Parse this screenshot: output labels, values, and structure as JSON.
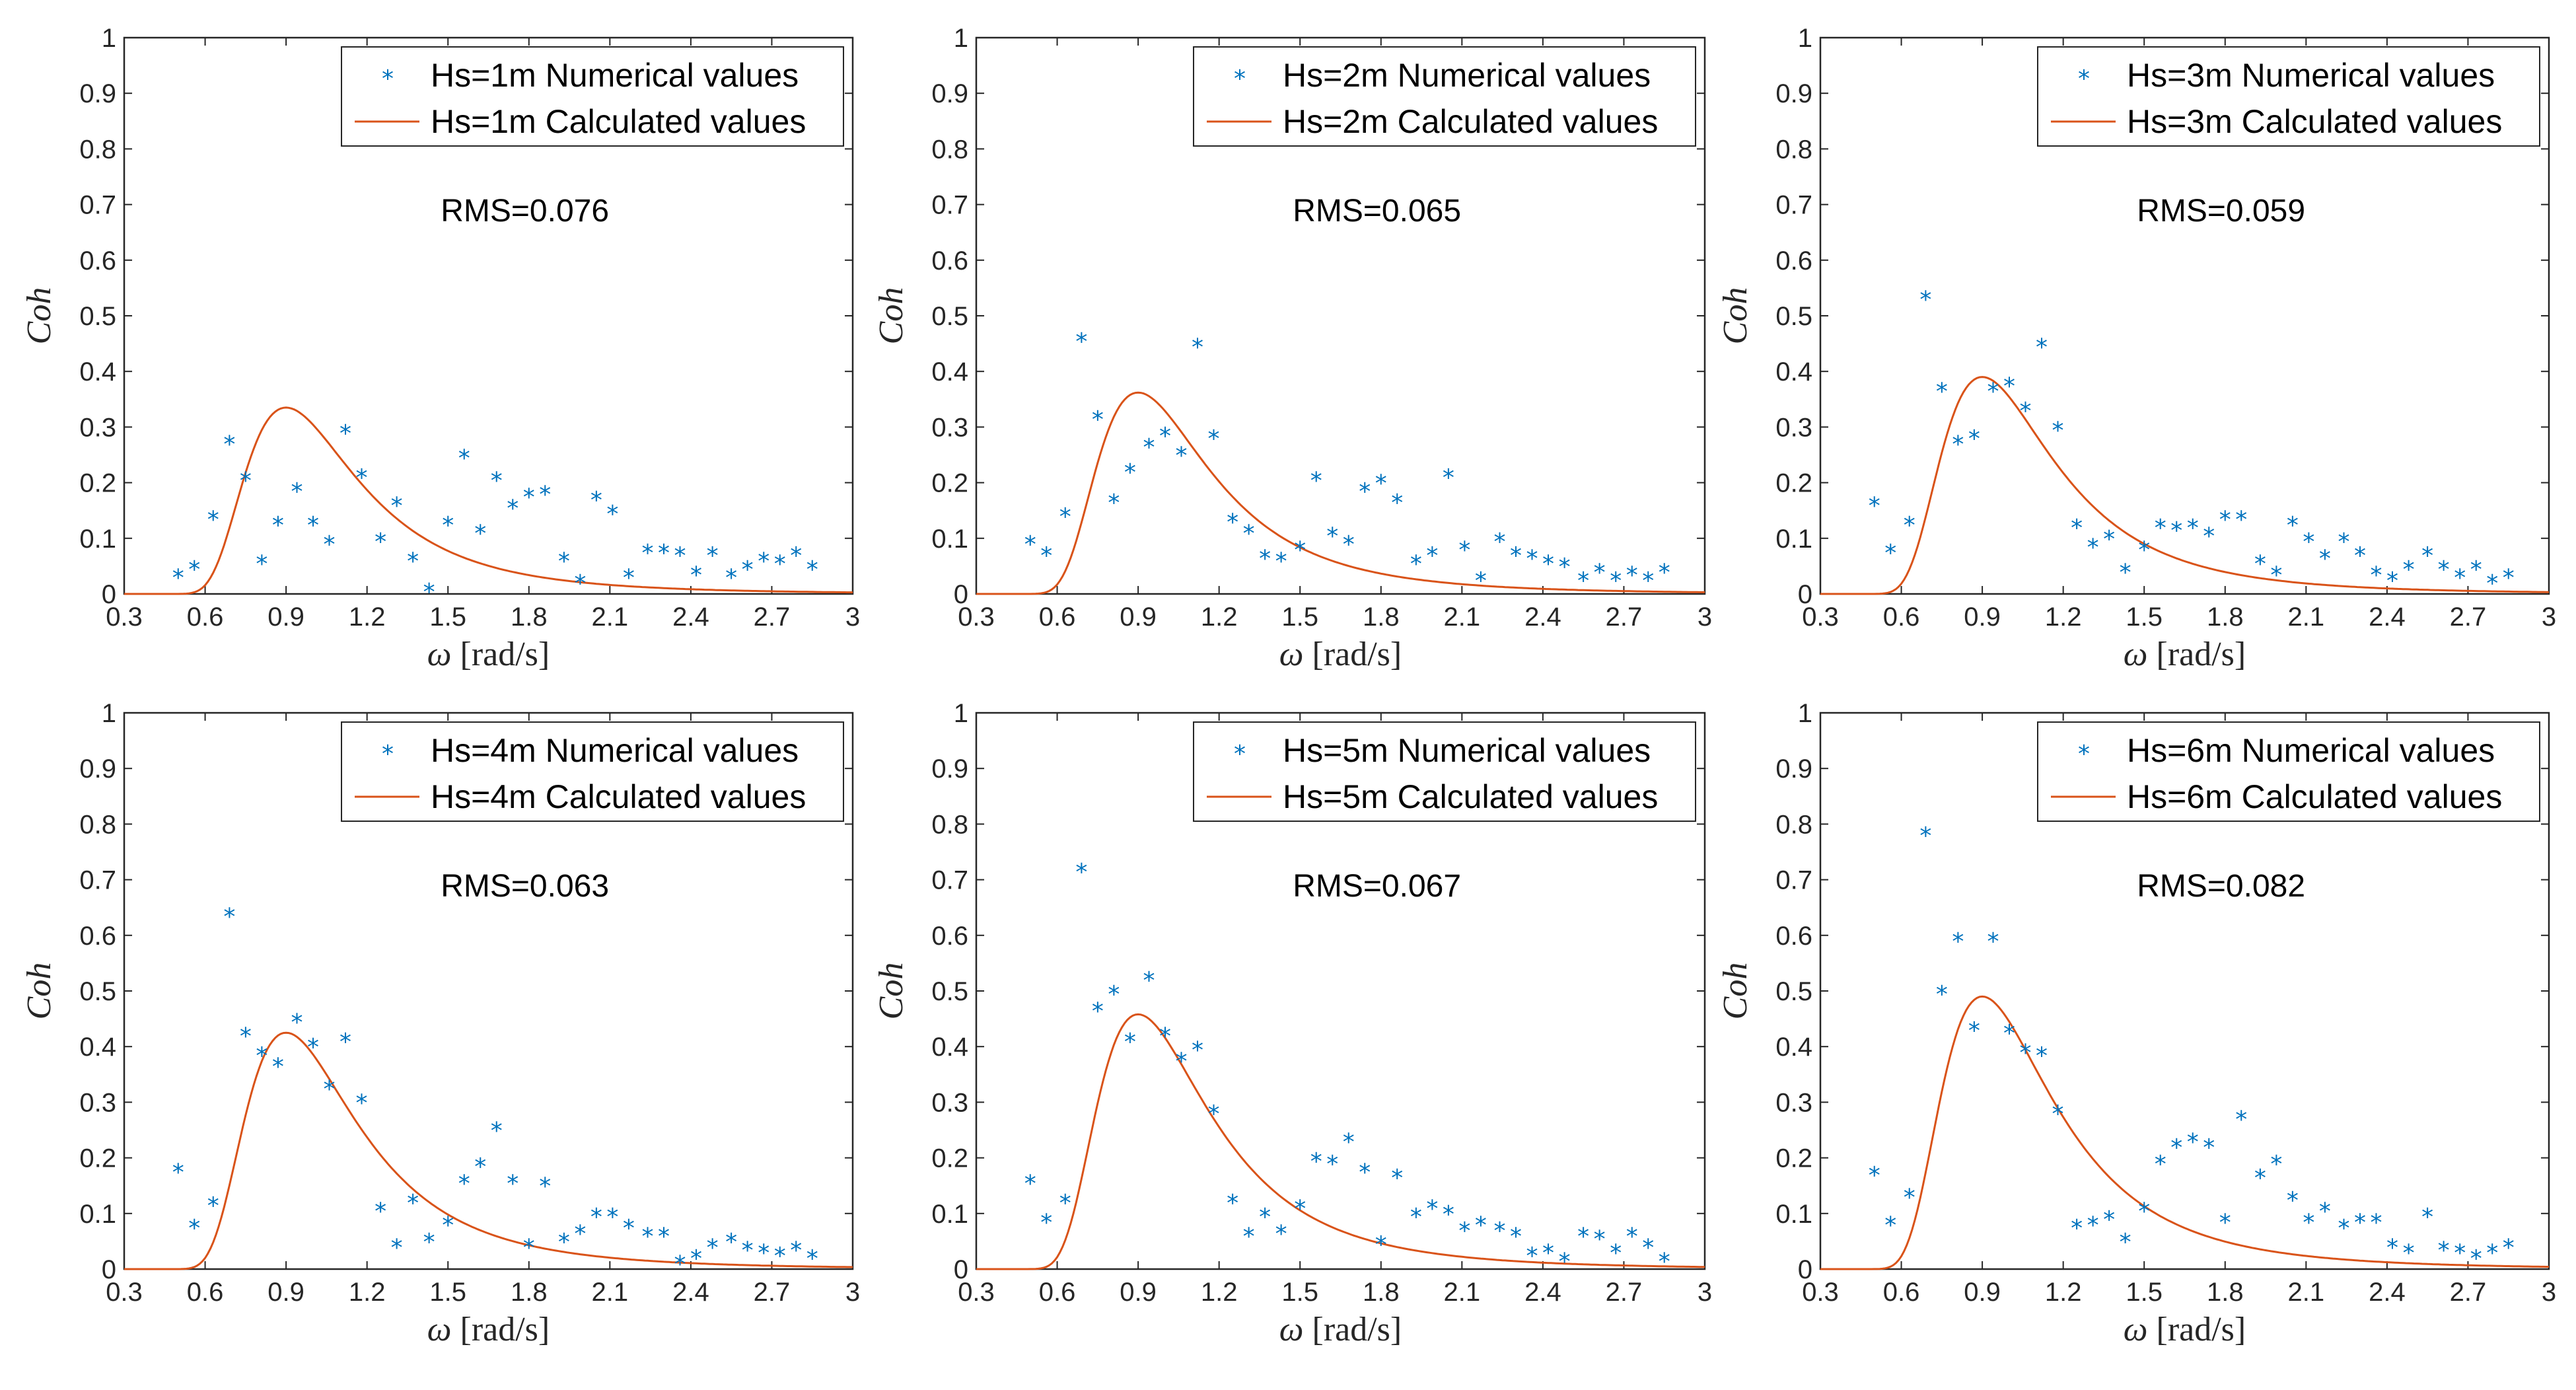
{
  "colors": {
    "numerical": "#0072BD",
    "calculated": "#D95319",
    "axis": "#262626"
  },
  "chart_data": [
    {
      "type": "scatter",
      "title": "",
      "xlabel": "ω [rad/s]",
      "ylabel": "Coh",
      "xlim": [
        0.3,
        3
      ],
      "ylim": [
        0,
        1
      ],
      "xticks": [
        "0.3",
        "0.6",
        "0.9",
        "1.2",
        "1.5",
        "1.8",
        "2.1",
        "2.4",
        "2.7",
        "3"
      ],
      "yticks": [
        "0",
        "0.1",
        "0.2",
        "0.3",
        "0.4",
        "0.5",
        "0.6",
        "0.7",
        "0.8",
        "0.9",
        "1"
      ],
      "legend": [
        "Hs=1m Numerical values",
        "Hs=1m Calculated values"
      ],
      "rms": "RMS=0.076",
      "peak": 0.335,
      "x": [
        0.5,
        0.56,
        0.63,
        0.69,
        0.75,
        0.81,
        0.87,
        0.94,
        1.0,
        1.06,
        1.12,
        1.18,
        1.25,
        1.31,
        1.37,
        1.43,
        1.5,
        1.56,
        1.62,
        1.68,
        1.74,
        1.8,
        1.86,
        1.93,
        1.99,
        2.05,
        2.11,
        2.17,
        2.24,
        2.3,
        2.36,
        2.42,
        2.48,
        2.55,
        2.61,
        2.67,
        2.73,
        2.79,
        2.85
      ],
      "y": [
        0.03,
        0.045,
        0.135,
        0.27,
        0.205,
        0.055,
        0.125,
        0.185,
        0.125,
        0.09,
        0.29,
        0.21,
        0.095,
        0.16,
        0.06,
        0.005,
        0.125,
        0.245,
        0.11,
        0.205,
        0.155,
        0.175,
        0.18,
        0.06,
        0.02,
        0.17,
        0.145,
        0.03,
        0.075,
        0.075,
        0.07,
        0.035,
        0.07,
        0.03,
        0.045,
        0.06,
        0.055,
        0.07,
        0.045
      ]
    },
    {
      "type": "scatter",
      "title": "",
      "xlabel": "ω [rad/s]",
      "ylabel": "Coh",
      "xlim": [
        0.3,
        3
      ],
      "ylim": [
        0,
        1
      ],
      "xticks": [
        "0.3",
        "0.6",
        "0.9",
        "1.2",
        "1.5",
        "1.8",
        "2.1",
        "2.4",
        "2.7",
        "3"
      ],
      "yticks": [
        "0",
        "0.1",
        "0.2",
        "0.3",
        "0.4",
        "0.5",
        "0.6",
        "0.7",
        "0.8",
        "0.9",
        "1"
      ],
      "legend": [
        "Hs=2m Numerical values",
        "Hs=2m Calculated values"
      ],
      "rms": "RMS=0.065",
      "peak": 0.362,
      "x": [
        0.5,
        0.56,
        0.63,
        0.69,
        0.75,
        0.81,
        0.87,
        0.94,
        1.0,
        1.06,
        1.12,
        1.18,
        1.25,
        1.31,
        1.37,
        1.43,
        1.5,
        1.56,
        1.62,
        1.68,
        1.74,
        1.8,
        1.86,
        1.93,
        1.99,
        2.05,
        2.11,
        2.17,
        2.24,
        2.3,
        2.36,
        2.42,
        2.48,
        2.55,
        2.61,
        2.67,
        2.73,
        2.79,
        2.85
      ],
      "y": [
        0.09,
        0.07,
        0.14,
        0.455,
        0.315,
        0.165,
        0.22,
        0.265,
        0.285,
        0.25,
        0.445,
        0.28,
        0.13,
        0.11,
        0.065,
        0.06,
        0.08,
        0.205,
        0.105,
        0.09,
        0.185,
        0.2,
        0.165,
        0.055,
        0.07,
        0.21,
        0.08,
        0.025,
        0.095,
        0.07,
        0.065,
        0.055,
        0.05,
        0.025,
        0.04,
        0.025,
        0.035,
        0.025,
        0.04
      ]
    },
    {
      "type": "scatter",
      "title": "",
      "xlabel": "ω [rad/s]",
      "ylabel": "Coh",
      "xlim": [
        0.3,
        3
      ],
      "ylim": [
        0,
        1
      ],
      "xticks": [
        "0.3",
        "0.6",
        "0.9",
        "1.2",
        "1.5",
        "1.8",
        "2.1",
        "2.4",
        "2.7",
        "3"
      ],
      "yticks": [
        "0",
        "0.1",
        "0.2",
        "0.3",
        "0.4",
        "0.5",
        "0.6",
        "0.7",
        "0.8",
        "0.9",
        "1"
      ],
      "legend": [
        "Hs=3m Numerical values",
        "Hs=3m Calculated values"
      ],
      "rms": "RMS=0.059",
      "peak": 0.39,
      "x": [
        0.5,
        0.56,
        0.63,
        0.69,
        0.75,
        0.81,
        0.87,
        0.94,
        1.0,
        1.06,
        1.12,
        1.18,
        1.25,
        1.31,
        1.37,
        1.43,
        1.5,
        1.56,
        1.62,
        1.68,
        1.74,
        1.8,
        1.86,
        1.93,
        1.99,
        2.05,
        2.11,
        2.17,
        2.24,
        2.3,
        2.36,
        2.42,
        2.48,
        2.55,
        2.61,
        2.67,
        2.73,
        2.79,
        2.85
      ],
      "y": [
        0.16,
        0.075,
        0.125,
        0.53,
        0.365,
        0.27,
        0.28,
        0.365,
        0.375,
        0.33,
        0.445,
        0.295,
        0.12,
        0.085,
        0.1,
        0.04,
        0.08,
        0.12,
        0.115,
        0.12,
        0.105,
        0.135,
        0.135,
        0.055,
        0.035,
        0.125,
        0.095,
        0.065,
        0.095,
        0.07,
        0.035,
        0.025,
        0.045,
        0.07,
        0.045,
        0.03,
        0.045,
        0.02,
        0.03
      ]
    },
    {
      "type": "scatter",
      "title": "",
      "xlabel": "ω [rad/s]",
      "ylabel": "Coh",
      "xlim": [
        0.3,
        3
      ],
      "ylim": [
        0,
        1
      ],
      "xticks": [
        "0.3",
        "0.6",
        "0.9",
        "1.2",
        "1.5",
        "1.8",
        "2.1",
        "2.4",
        "2.7",
        "3"
      ],
      "yticks": [
        "0",
        "0.1",
        "0.2",
        "0.3",
        "0.4",
        "0.5",
        "0.6",
        "0.7",
        "0.8",
        "0.9",
        "1"
      ],
      "legend": [
        "Hs=4m Numerical values",
        "Hs=4m Calculated values"
      ],
      "rms": "RMS=0.063",
      "peak": 0.425,
      "x": [
        0.5,
        0.56,
        0.63,
        0.69,
        0.75,
        0.81,
        0.87,
        0.94,
        1.0,
        1.06,
        1.12,
        1.18,
        1.25,
        1.31,
        1.37,
        1.43,
        1.5,
        1.56,
        1.62,
        1.68,
        1.74,
        1.8,
        1.86,
        1.93,
        1.99,
        2.05,
        2.11,
        2.17,
        2.24,
        2.3,
        2.36,
        2.42,
        2.48,
        2.55,
        2.61,
        2.67,
        2.73,
        2.79,
        2.85
      ],
      "y": [
        0.175,
        0.075,
        0.115,
        0.635,
        0.42,
        0.385,
        0.365,
        0.445,
        0.4,
        0.325,
        0.41,
        0.3,
        0.105,
        0.04,
        0.12,
        0.05,
        0.08,
        0.155,
        0.185,
        0.25,
        0.155,
        0.04,
        0.15,
        0.05,
        0.065,
        0.095,
        0.095,
        0.075,
        0.06,
        0.06,
        0.01,
        0.02,
        0.04,
        0.05,
        0.035,
        0.03,
        0.025,
        0.035,
        0.02
      ]
    },
    {
      "type": "scatter",
      "title": "",
      "xlabel": "ω [rad/s]",
      "ylabel": "Coh",
      "xlim": [
        0.3,
        3
      ],
      "ylim": [
        0,
        1
      ],
      "xticks": [
        "0.3",
        "0.6",
        "0.9",
        "1.2",
        "1.5",
        "1.8",
        "2.1",
        "2.4",
        "2.7",
        "3"
      ],
      "yticks": [
        "0",
        "0.1",
        "0.2",
        "0.3",
        "0.4",
        "0.5",
        "0.6",
        "0.7",
        "0.8",
        "0.9",
        "1"
      ],
      "legend": [
        "Hs=5m Numerical values",
        "Hs=5m Calculated values"
      ],
      "rms": "RMS=0.067",
      "peak": 0.458,
      "x": [
        0.5,
        0.56,
        0.63,
        0.69,
        0.75,
        0.81,
        0.87,
        0.94,
        1.0,
        1.06,
        1.12,
        1.18,
        1.25,
        1.31,
        1.37,
        1.43,
        1.5,
        1.56,
        1.62,
        1.68,
        1.74,
        1.8,
        1.86,
        1.93,
        1.99,
        2.05,
        2.11,
        2.17,
        2.24,
        2.3,
        2.36,
        2.42,
        2.48,
        2.55,
        2.61,
        2.67,
        2.73,
        2.79,
        2.85
      ],
      "y": [
        0.155,
        0.085,
        0.12,
        0.715,
        0.465,
        0.495,
        0.41,
        0.52,
        0.42,
        0.375,
        0.395,
        0.28,
        0.12,
        0.06,
        0.095,
        0.065,
        0.11,
        0.195,
        0.19,
        0.23,
        0.175,
        0.045,
        0.165,
        0.095,
        0.11,
        0.1,
        0.07,
        0.08,
        0.07,
        0.06,
        0.025,
        0.03,
        0.015,
        0.06,
        0.055,
        0.03,
        0.06,
        0.04,
        0.015
      ]
    },
    {
      "type": "scatter",
      "title": "",
      "xlabel": "ω [rad/s]",
      "ylabel": "Coh",
      "xlim": [
        0.3,
        3
      ],
      "ylim": [
        0,
        1
      ],
      "xticks": [
        "0.3",
        "0.6",
        "0.9",
        "1.2",
        "1.5",
        "1.8",
        "2.1",
        "2.4",
        "2.7",
        "3"
      ],
      "yticks": [
        "0",
        "0.1",
        "0.2",
        "0.3",
        "0.4",
        "0.5",
        "0.6",
        "0.7",
        "0.8",
        "0.9",
        "1"
      ],
      "legend": [
        "Hs=6m Numerical values",
        "Hs=6m Calculated values"
      ],
      "rms": "RMS=0.082",
      "peak": 0.49,
      "x": [
        0.5,
        0.56,
        0.63,
        0.69,
        0.75,
        0.81,
        0.87,
        0.94,
        1.0,
        1.06,
        1.12,
        1.18,
        1.25,
        1.31,
        1.37,
        1.43,
        1.5,
        1.56,
        1.62,
        1.68,
        1.74,
        1.8,
        1.86,
        1.93,
        1.99,
        2.05,
        2.11,
        2.17,
        2.24,
        2.3,
        2.36,
        2.42,
        2.48,
        2.55,
        2.61,
        2.67,
        2.73,
        2.79,
        2.85
      ],
      "y": [
        0.17,
        0.08,
        0.13,
        0.78,
        0.495,
        0.59,
        0.43,
        0.59,
        0.425,
        0.39,
        0.385,
        0.28,
        0.075,
        0.08,
        0.09,
        0.05,
        0.105,
        0.19,
        0.22,
        0.23,
        0.22,
        0.085,
        0.27,
        0.165,
        0.19,
        0.125,
        0.085,
        0.105,
        0.075,
        0.085,
        0.085,
        0.04,
        0.03,
        0.095,
        0.035,
        0.03,
        0.02,
        0.03,
        0.04
      ]
    }
  ]
}
